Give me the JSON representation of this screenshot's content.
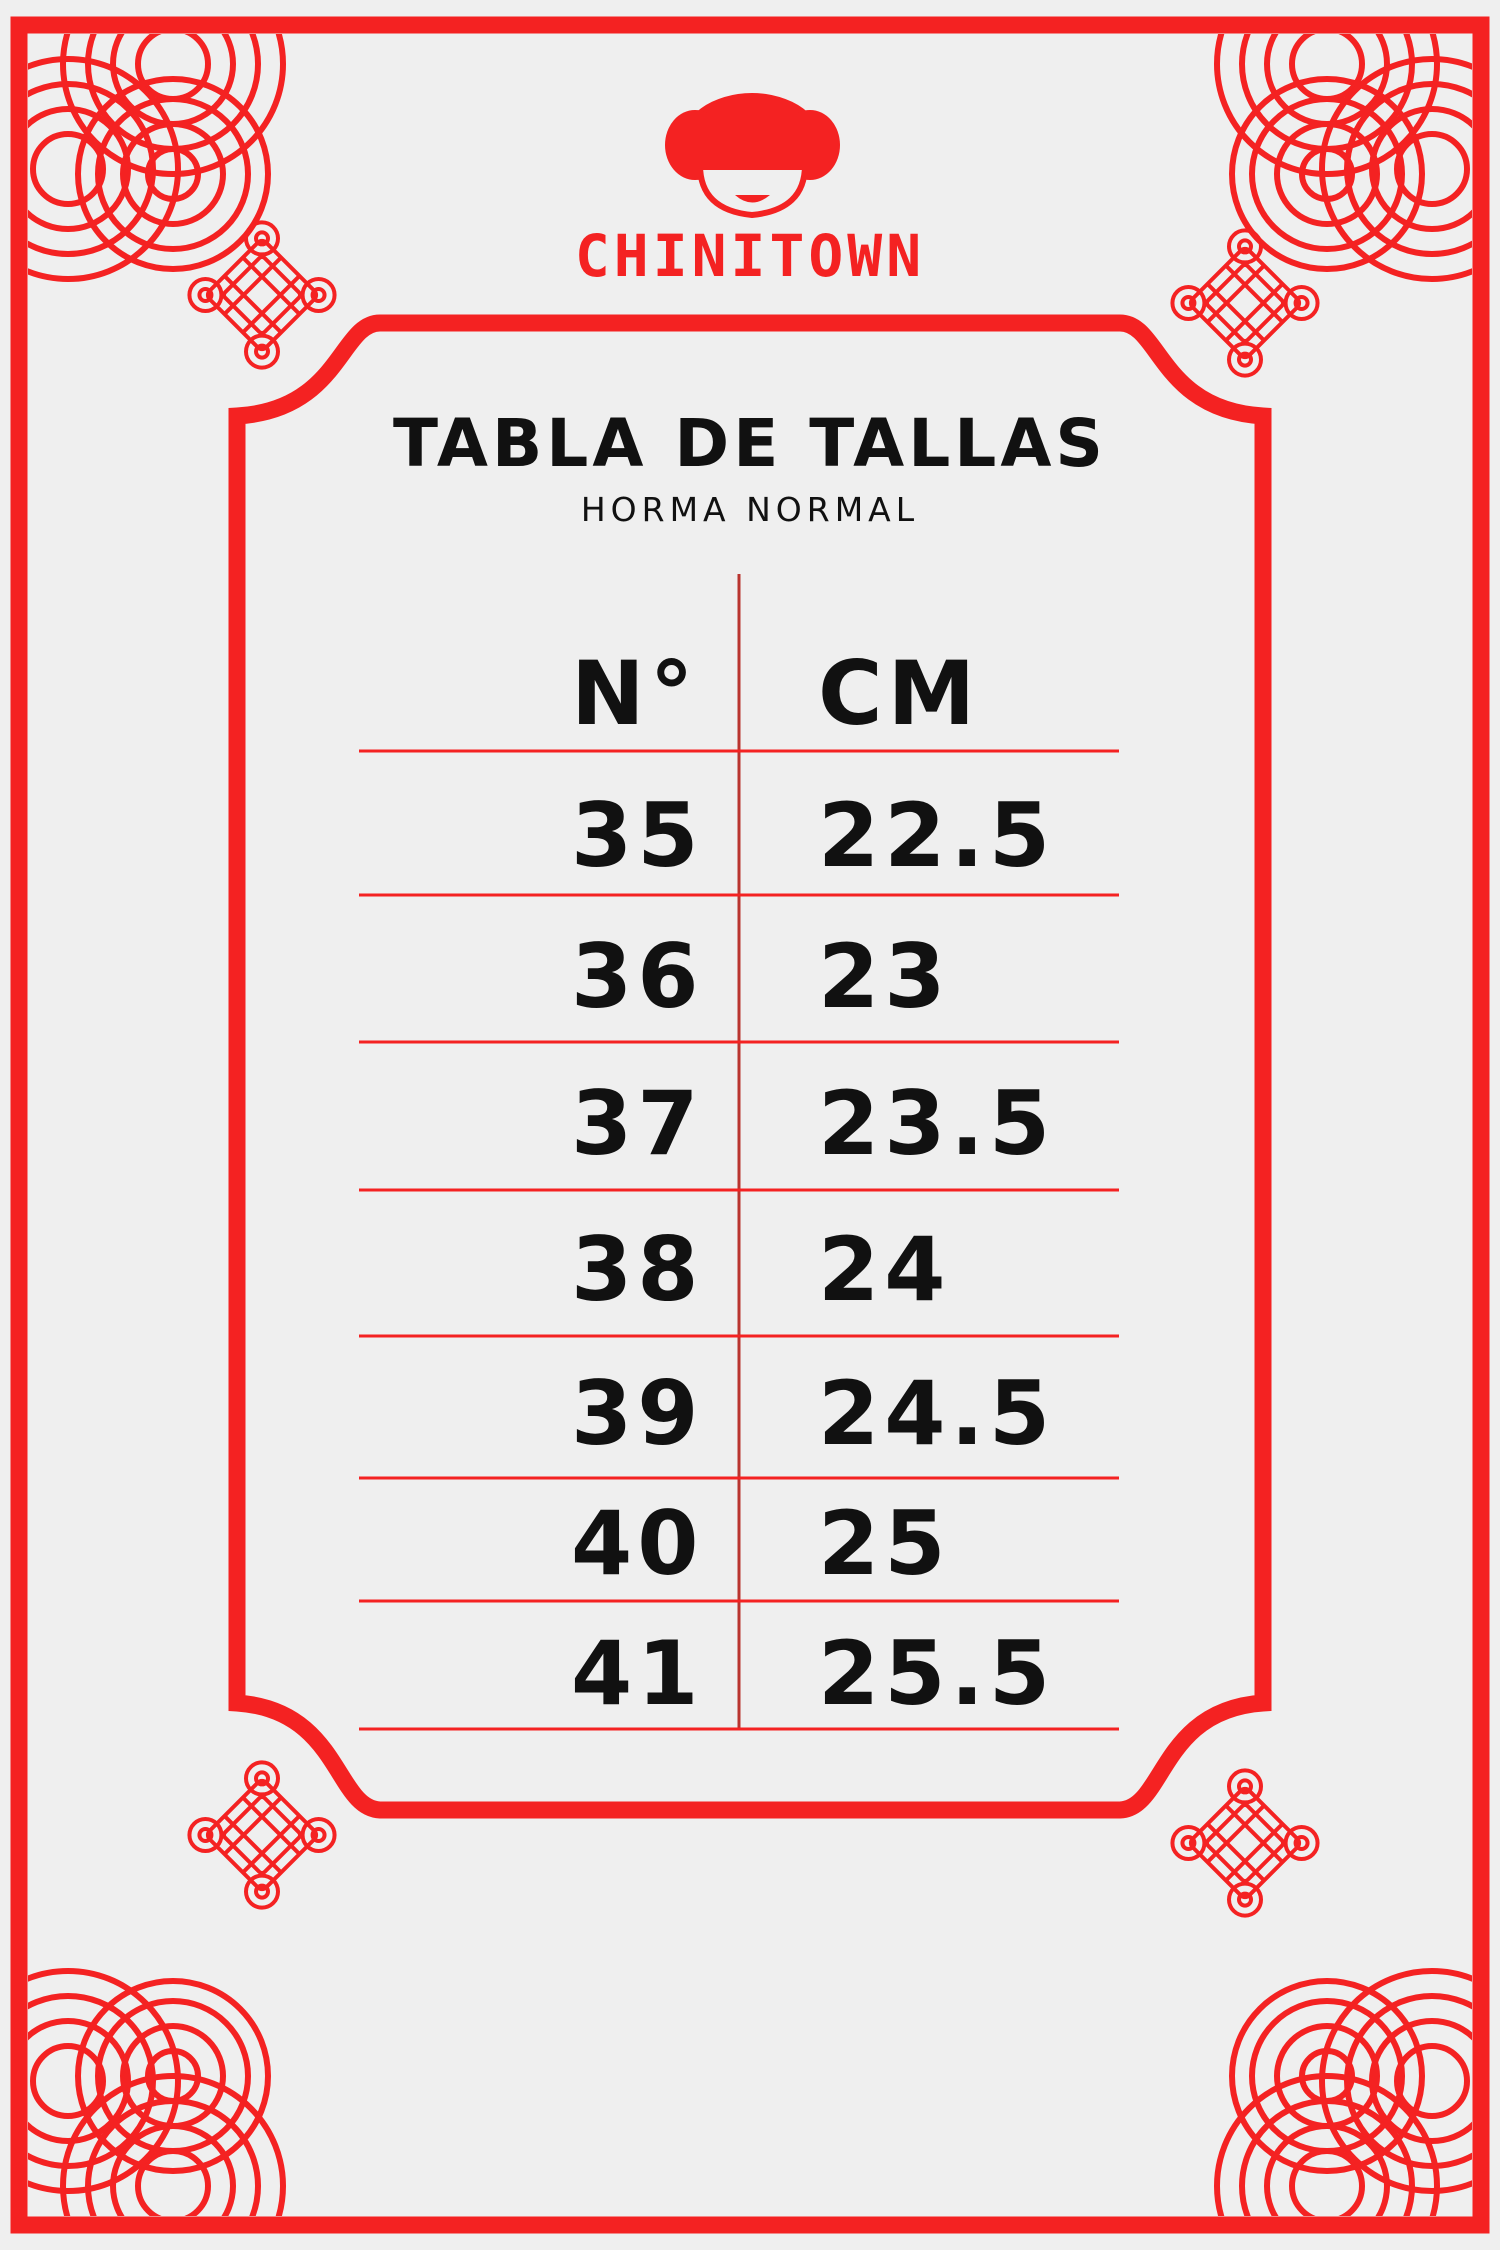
{
  "brand": {
    "name": "CHINITOWN",
    "color": "#f42222"
  },
  "header": {
    "title": "TABLA DE TALLAS",
    "subtitle": "HORMA NORMAL"
  },
  "table": {
    "columns": [
      "N°",
      "CM"
    ],
    "rows": [
      [
        "35",
        "22.5"
      ],
      [
        "36",
        "23"
      ],
      [
        "37",
        "23.5"
      ],
      [
        "38",
        "24"
      ],
      [
        "39",
        "24.5"
      ],
      [
        "40",
        "25"
      ],
      [
        "41",
        "25.5"
      ]
    ]
  }
}
